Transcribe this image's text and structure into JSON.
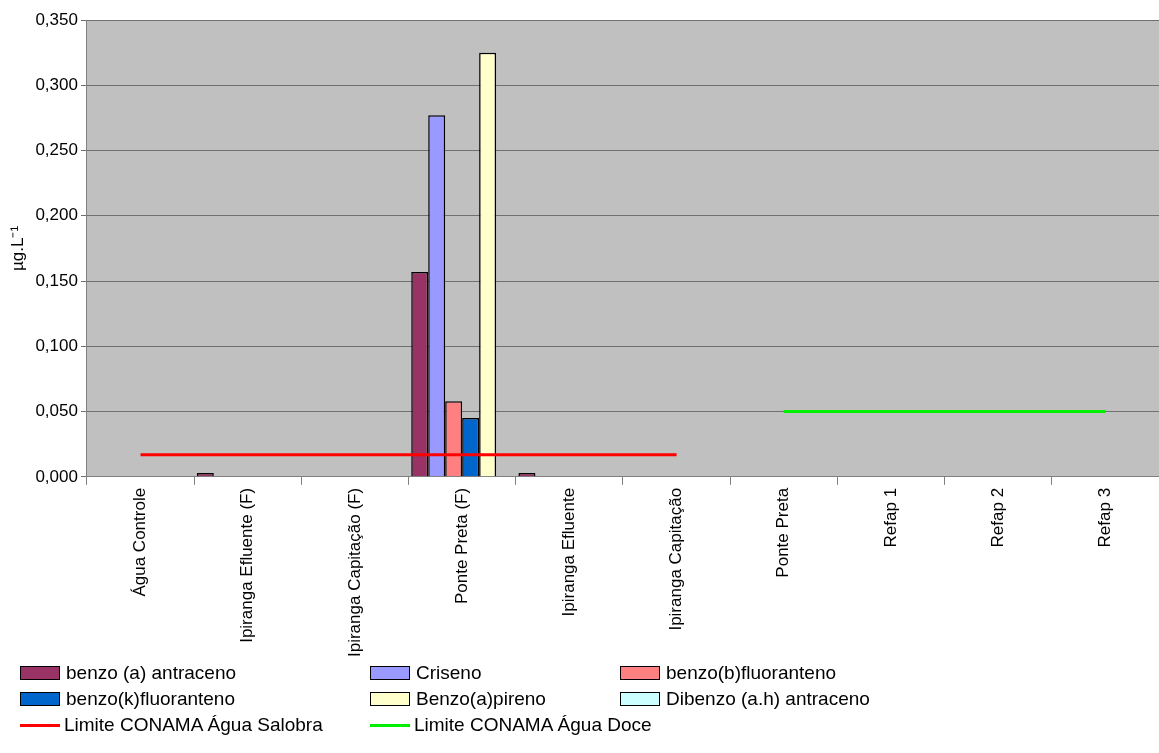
{
  "chart_data": {
    "type": "bar",
    "ylabel": "µg.L⁻¹",
    "categories": [
      "Água Controle",
      "Ipiranga Efluente (F)",
      "Ipiranga Capitação (F)",
      "Ponte Preta (F)",
      "Ipiranga Efluente",
      "Ipiranga Capitação",
      "Ponte Preta",
      "Refap 1",
      "Refap 2",
      "Refap 3"
    ],
    "series": [
      {
        "name": "benzo (a) antraceno",
        "color": "#993366",
        "values": [
          null,
          0.003,
          null,
          0.157,
          0.003,
          null,
          null,
          null,
          null,
          null
        ]
      },
      {
        "name": "Criseno",
        "color": "#9999ff",
        "values": [
          null,
          null,
          null,
          0.277,
          null,
          null,
          null,
          null,
          null,
          null
        ]
      },
      {
        "name": "benzo(b)fluoranteno",
        "color": "#ff8080",
        "values": [
          null,
          null,
          null,
          0.058,
          null,
          null,
          null,
          null,
          null,
          null
        ]
      },
      {
        "name": "benzo(k)fluoranteno",
        "color": "#0066cc",
        "values": [
          null,
          null,
          null,
          0.045,
          null,
          null,
          null,
          null,
          null,
          null
        ]
      },
      {
        "name": "Benzo(a)pireno",
        "color": "#ffffcc",
        "values": [
          null,
          null,
          null,
          0.325,
          null,
          null,
          null,
          null,
          null,
          null
        ]
      },
      {
        "name": "Dibenzo (a.h) antraceno",
        "color": "#ccffff",
        "values": [
          null,
          null,
          null,
          null,
          null,
          null,
          null,
          null,
          null,
          null
        ]
      },
      {
        "name": "Limite CONAMA Água Salobra",
        "type": "line",
        "color": "#ff0000",
        "values": [
          0.017,
          0.017,
          0.017,
          0.017,
          0.017,
          0.017,
          null,
          null,
          null,
          null
        ]
      },
      {
        "name": "Limite CONAMA Água Doce",
        "type": "line",
        "color": "#00ee00",
        "values": [
          null,
          null,
          null,
          null,
          null,
          null,
          0.05,
          0.05,
          0.05,
          0.05
        ]
      }
    ],
    "ylim": [
      0,
      0.35
    ],
    "yticks": [
      {
        "value": 0,
        "label": "0,000"
      },
      {
        "value": 0.05,
        "label": "0,050"
      },
      {
        "value": 0.1,
        "label": "0,100"
      },
      {
        "value": 0.15,
        "label": "0,150"
      },
      {
        "value": 0.2,
        "label": "0,200"
      },
      {
        "value": 0.25,
        "label": "0,250"
      },
      {
        "value": 0.3,
        "label": "0,300"
      },
      {
        "value": 0.35,
        "label": "0,350"
      }
    ],
    "grid": "y",
    "legend": "bottom",
    "marker": "none"
  }
}
